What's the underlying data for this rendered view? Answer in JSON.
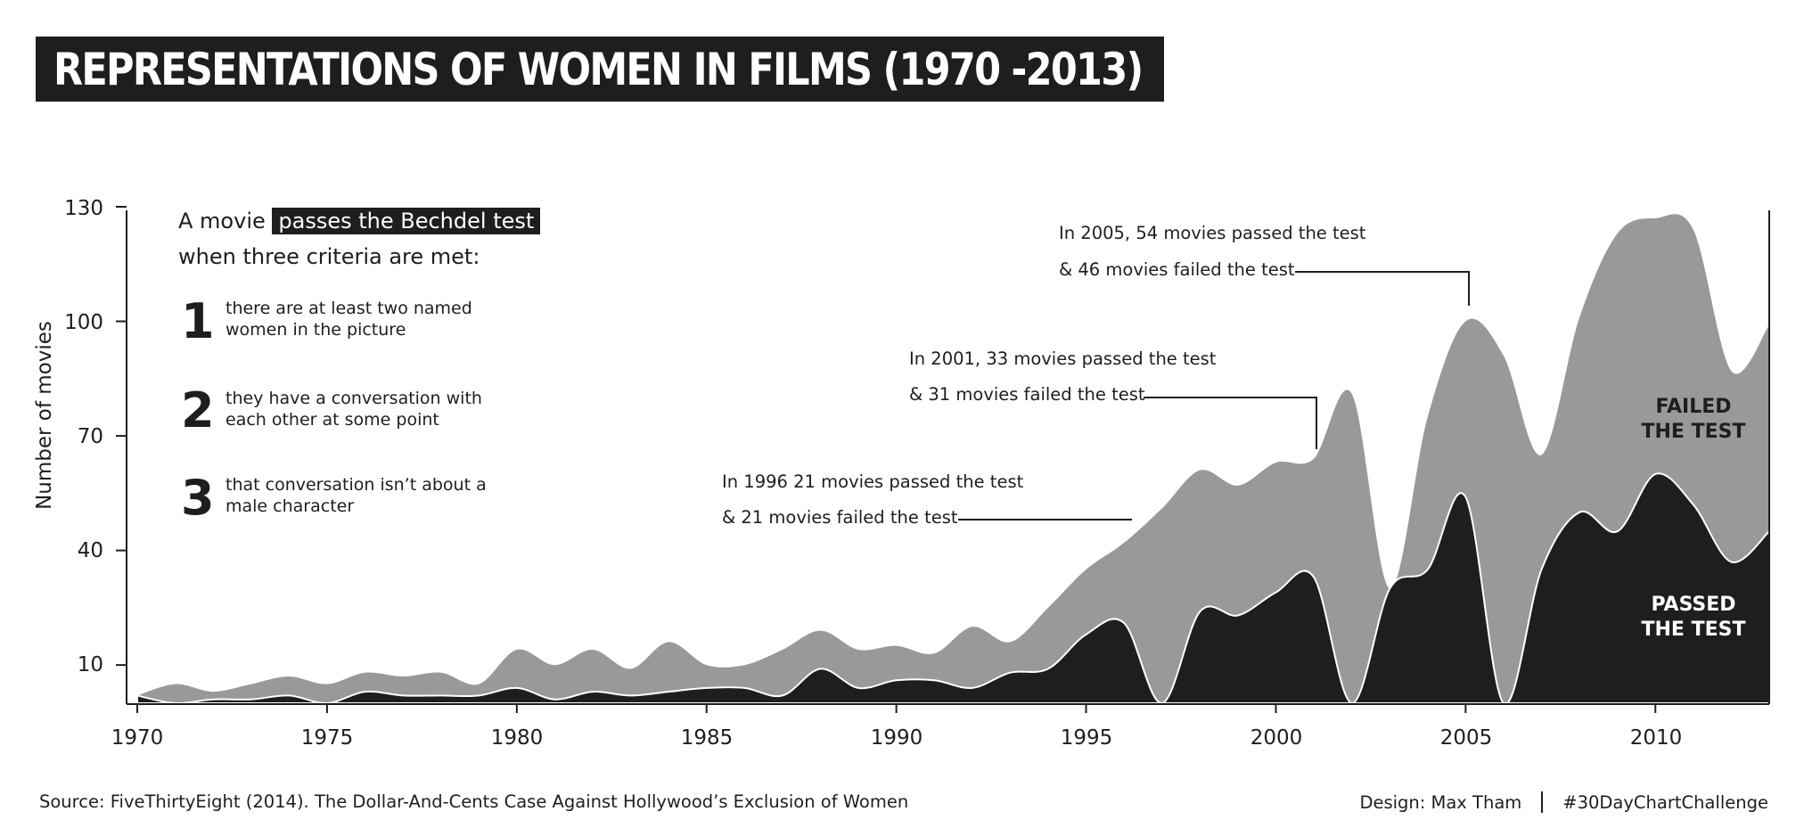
{
  "title": "REPRESENTATIONS OF WOMEN IN FILMS (1970 -2013)",
  "intro": {
    "prefix": "A movie",
    "highlight": "passes the Bechdel test",
    "line2": "when three criteria are met:"
  },
  "criteria": [
    {
      "num": "1",
      "line1": "there are at least two named",
      "line2": "women in the picture"
    },
    {
      "num": "2",
      "line1": "they have a conversation with",
      "line2": "each other at some point"
    },
    {
      "num": "3",
      "line1": "that conversation isn’t about a",
      "line2": "male character"
    }
  ],
  "annotations": [
    {
      "line1": "In 2005, 54 movies passed the test",
      "line2": "& 46 movies failed the test"
    },
    {
      "line1": "In 2001, 33 movies passed the test",
      "line2": "& 31 movies failed the test"
    },
    {
      "line1": "In 1996 21 movies passed the test",
      "line2": "& 21 movies failed the test"
    }
  ],
  "area_labels": {
    "failed": "FAILED\nTHE TEST",
    "passed": "PASSED\nTHE TEST"
  },
  "footer": {
    "source": "Source: FiveThirtyEight (2014). The Dollar-And-Cents Case Against Hollywood’s Exclusion of Women",
    "design": "Design: Max Tham",
    "hashtag": "#30DayChartChallenge"
  },
  "colors": {
    "dark": "#1e1e1e",
    "gray": "#999999",
    "background": "#ffffff"
  },
  "chart_data": {
    "type": "area",
    "ylabel": "Number of movies",
    "xlabel": "",
    "xlim": [
      1970,
      2013
    ],
    "ylim": [
      0,
      130
    ],
    "yticks": [
      10,
      40,
      70,
      100,
      130
    ],
    "xticks": [
      1970,
      1975,
      1980,
      1985,
      1990,
      1995,
      2000,
      2005,
      2010
    ],
    "x": [
      1970,
      1971,
      1972,
      1973,
      1974,
      1975,
      1976,
      1977,
      1978,
      1979,
      1980,
      1981,
      1982,
      1983,
      1984,
      1985,
      1986,
      1987,
      1988,
      1989,
      1990,
      1991,
      1992,
      1993,
      1994,
      1995,
      1996,
      1997,
      1998,
      1999,
      2000,
      2001,
      2002,
      2003,
      2004,
      2005,
      2006,
      2007,
      2008,
      2009,
      2010,
      2011,
      2012,
      2013
    ],
    "series": [
      {
        "name": "PASSED THE TEST",
        "values": [
          2,
          0,
          1,
          1,
          2,
          0,
          3,
          2,
          2,
          2,
          4,
          1,
          3,
          2,
          3,
          4,
          4,
          2,
          9,
          4,
          6,
          6,
          4,
          8,
          9,
          18,
          21,
          0,
          24,
          23,
          29,
          33,
          0,
          30,
          35,
          54,
          0,
          35,
          50,
          45,
          60,
          52,
          37,
          45
        ]
      },
      {
        "name": "FAILED THE TEST",
        "values": [
          0,
          5,
          2,
          4,
          5,
          5,
          5,
          5,
          6,
          3,
          10,
          9,
          11,
          7,
          13,
          6,
          6,
          12,
          10,
          10,
          9,
          7,
          16,
          8,
          16,
          17,
          21,
          51,
          37,
          34,
          34,
          31,
          81,
          0,
          40,
          46,
          91,
          30,
          51,
          78,
          67,
          72,
          50,
          54
        ]
      }
    ]
  }
}
